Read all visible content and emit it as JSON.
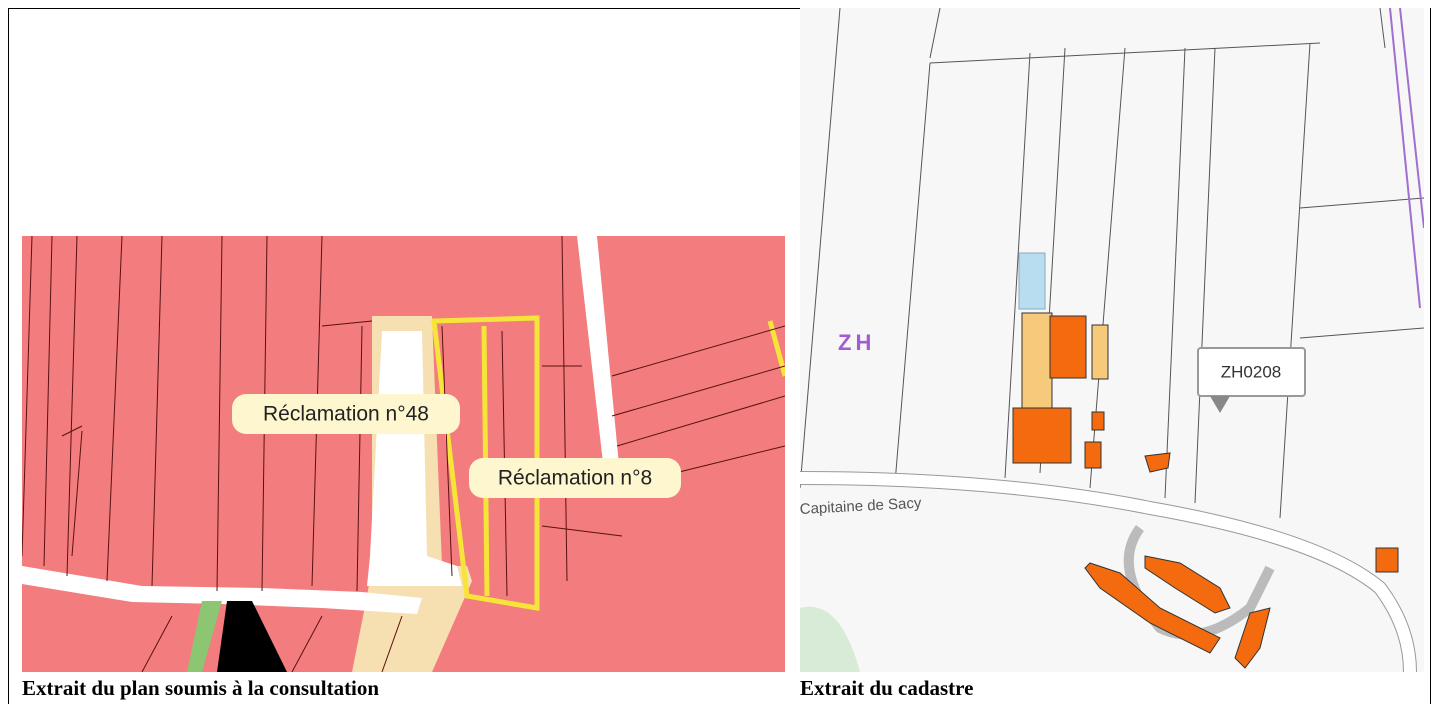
{
  "left_panel": {
    "map_labels": [
      "Réclamation n°48",
      "Réclamation n°8"
    ],
    "caption": "Extrait du plan soumis à la consultation"
  },
  "right_panel": {
    "section_label": "ZH",
    "parcel_label": "ZH0208",
    "street_label": "Capitaine de Sacy",
    "caption": "Extrait du cadastre"
  }
}
